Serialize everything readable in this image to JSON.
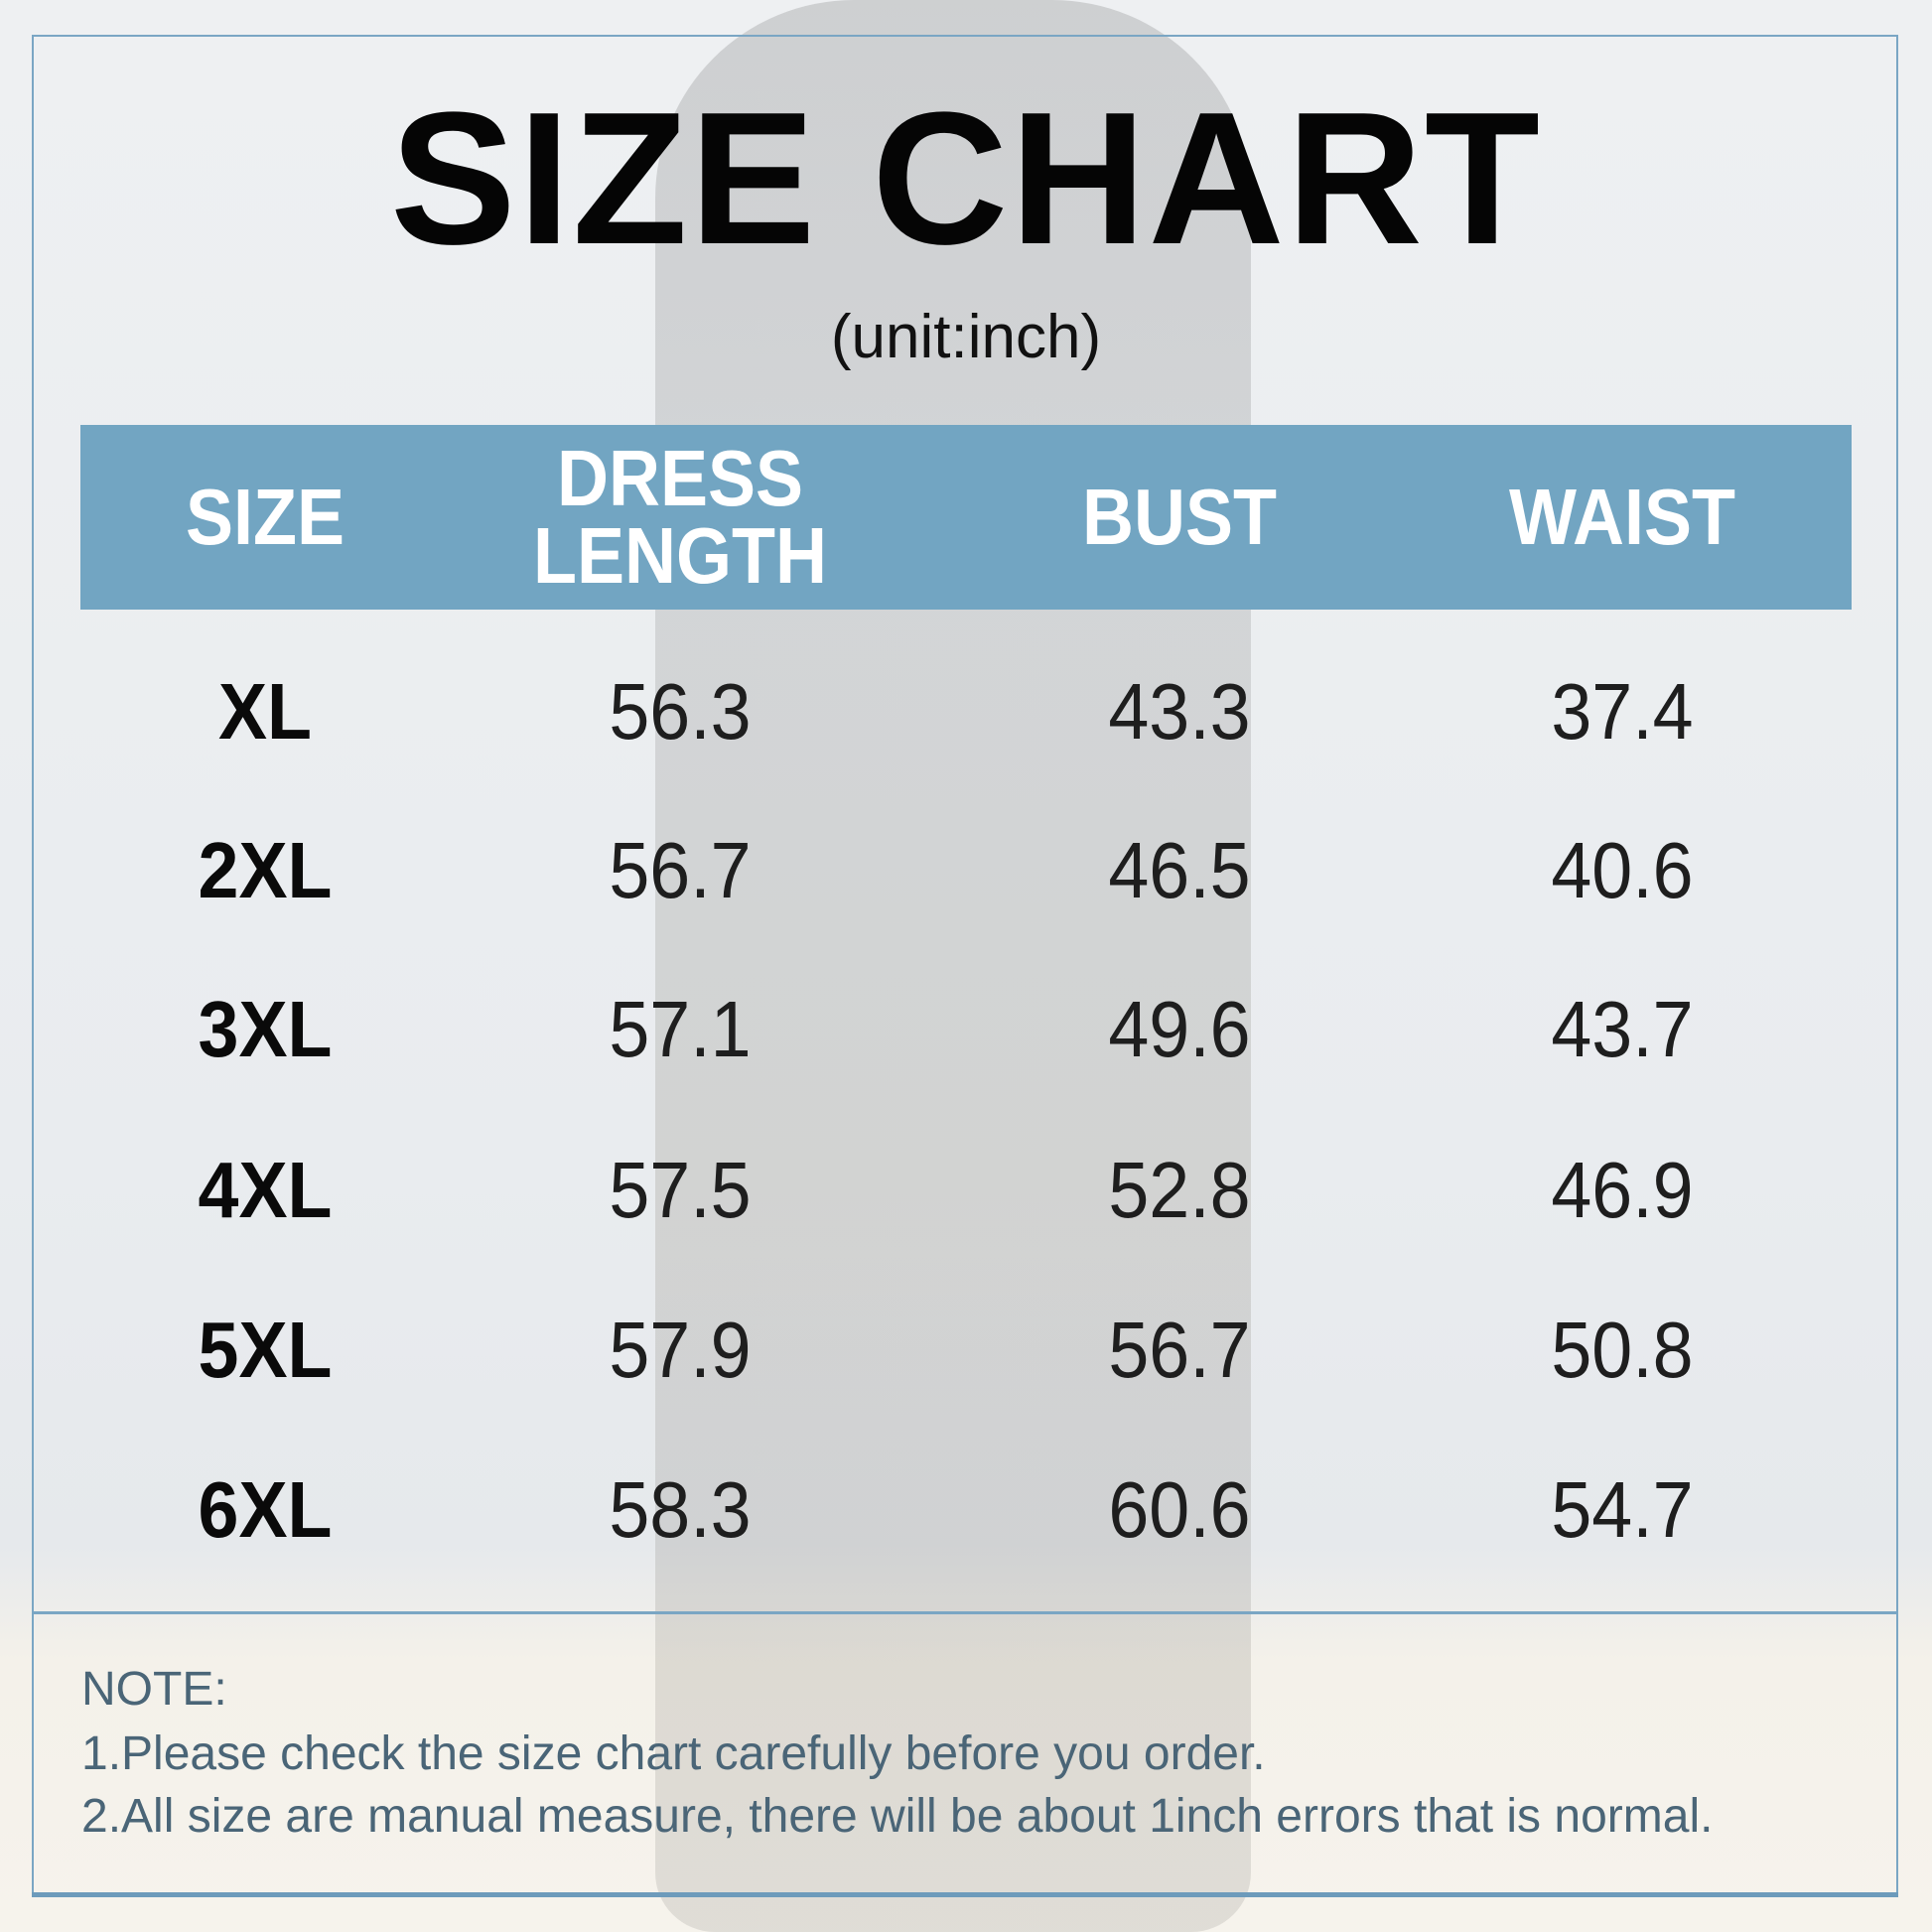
{
  "title": "SIZE CHART",
  "unit": "(unit:inch)",
  "colors": {
    "header_bg": "#72a5c2",
    "frame": "#7aa6c4",
    "note_text": "#4a6577"
  },
  "table": {
    "headers": [
      "SIZE",
      "DRESS LENGTH",
      "BUST",
      "WAIST"
    ],
    "rows": [
      [
        "XL",
        "56.3",
        "43.3",
        "37.4"
      ],
      [
        "2XL",
        "56.7",
        "46.5",
        "40.6"
      ],
      [
        "3XL",
        "57.1",
        "49.6",
        "43.7"
      ],
      [
        "4XL",
        "57.5",
        "52.8",
        "46.9"
      ],
      [
        "5XL",
        "57.9",
        "56.7",
        "50.8"
      ],
      [
        "6XL",
        "58.3",
        "60.6",
        "54.7"
      ]
    ]
  },
  "note": {
    "heading": "NOTE:",
    "lines": [
      "1.Please check the size chart carefully before you order.",
      "2.All size are manual measure, there will be about 1inch errors that is normal."
    ]
  }
}
